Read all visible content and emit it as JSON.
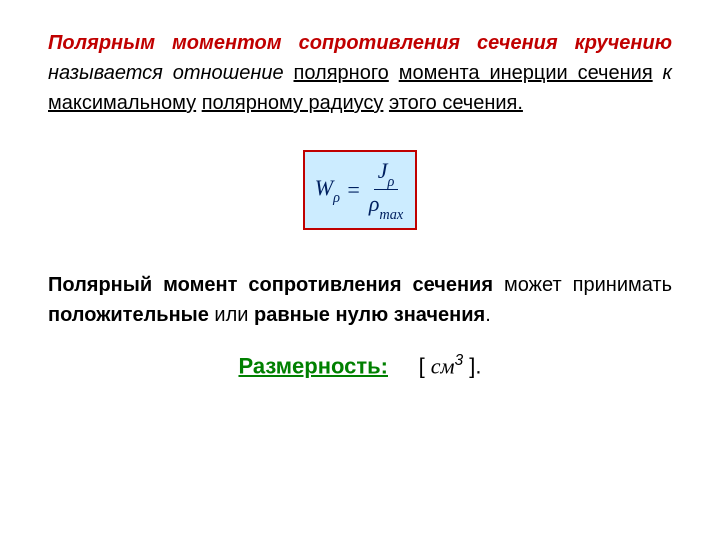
{
  "para1": {
    "red_part": "Полярным моментом сопротивления сечения кручению",
    "t1": " называется отношение ",
    "u1": "полярного",
    "sp1": " ",
    "u2": "момента инерции сечения",
    "t2": " к ",
    "u3": "максимальному",
    "sp2": " ",
    "u4": "полярному радиусу",
    "sp3": " ",
    "u5": "этого сечения."
  },
  "formula": {
    "lhs_sym": "W",
    "lhs_sub": "ρ",
    "eq": "=",
    "num_sym": "J",
    "num_sub": "ρ",
    "den_sym": "ρ",
    "den_sub": "max",
    "bg_color": "#ccecff",
    "border_color": "#c00000",
    "text_color": "#002060",
    "font_size": 22
  },
  "para2": {
    "b1": "Полярный момент сопротивления сечения",
    "t1": " может принимать ",
    "b2": "положительные",
    "t2": " или ",
    "b3": "равные нулю значения",
    "t3": "."
  },
  "dimension": {
    "label": "Размерность:",
    "bracket_open": "[ ",
    "unit": "см",
    "power": "3",
    "bracket_close": " ].",
    "label_color": "#008000"
  },
  "colors": {
    "red": "#c00000",
    "green": "#008000",
    "formula_text": "#002060",
    "formula_bg": "#ccecff",
    "page_bg": "#ffffff"
  }
}
